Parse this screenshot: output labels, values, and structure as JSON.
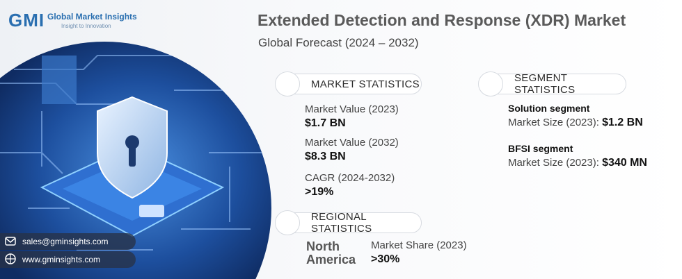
{
  "logo": {
    "mark": "GMI",
    "name": "Global Market Insights",
    "tagline": "Insight to Innovation"
  },
  "header": {
    "title": "Extended Detection and Response (XDR) Market",
    "subtitle": "Global Forecast (2024 – 2032)"
  },
  "market_statistics": {
    "heading": "MARKET STATISTICS",
    "items": [
      {
        "label": "Market Value (2023)",
        "value": "$1.7 BN"
      },
      {
        "label": "Market Value (2032)",
        "value": "$8.3 BN"
      },
      {
        "label": "CAGR (2024-2032)",
        "value": ">19%"
      }
    ]
  },
  "segment_statistics": {
    "heading": "SEGMENT STATISTICS",
    "items": [
      {
        "name": "Solution segment",
        "label": "Market Size (2023):",
        "value": "$1.2 BN"
      },
      {
        "name": "BFSI segment",
        "label": "Market Size (2023):",
        "value": "$340 MN"
      }
    ]
  },
  "regional_statistics": {
    "heading": "REGIONAL STATISTICS",
    "region": "North America",
    "label": "Market Share (2023)",
    "value": ">30%"
  },
  "contact": {
    "email": "sales@gminsights.com",
    "website": "www.gminsights.com"
  }
}
